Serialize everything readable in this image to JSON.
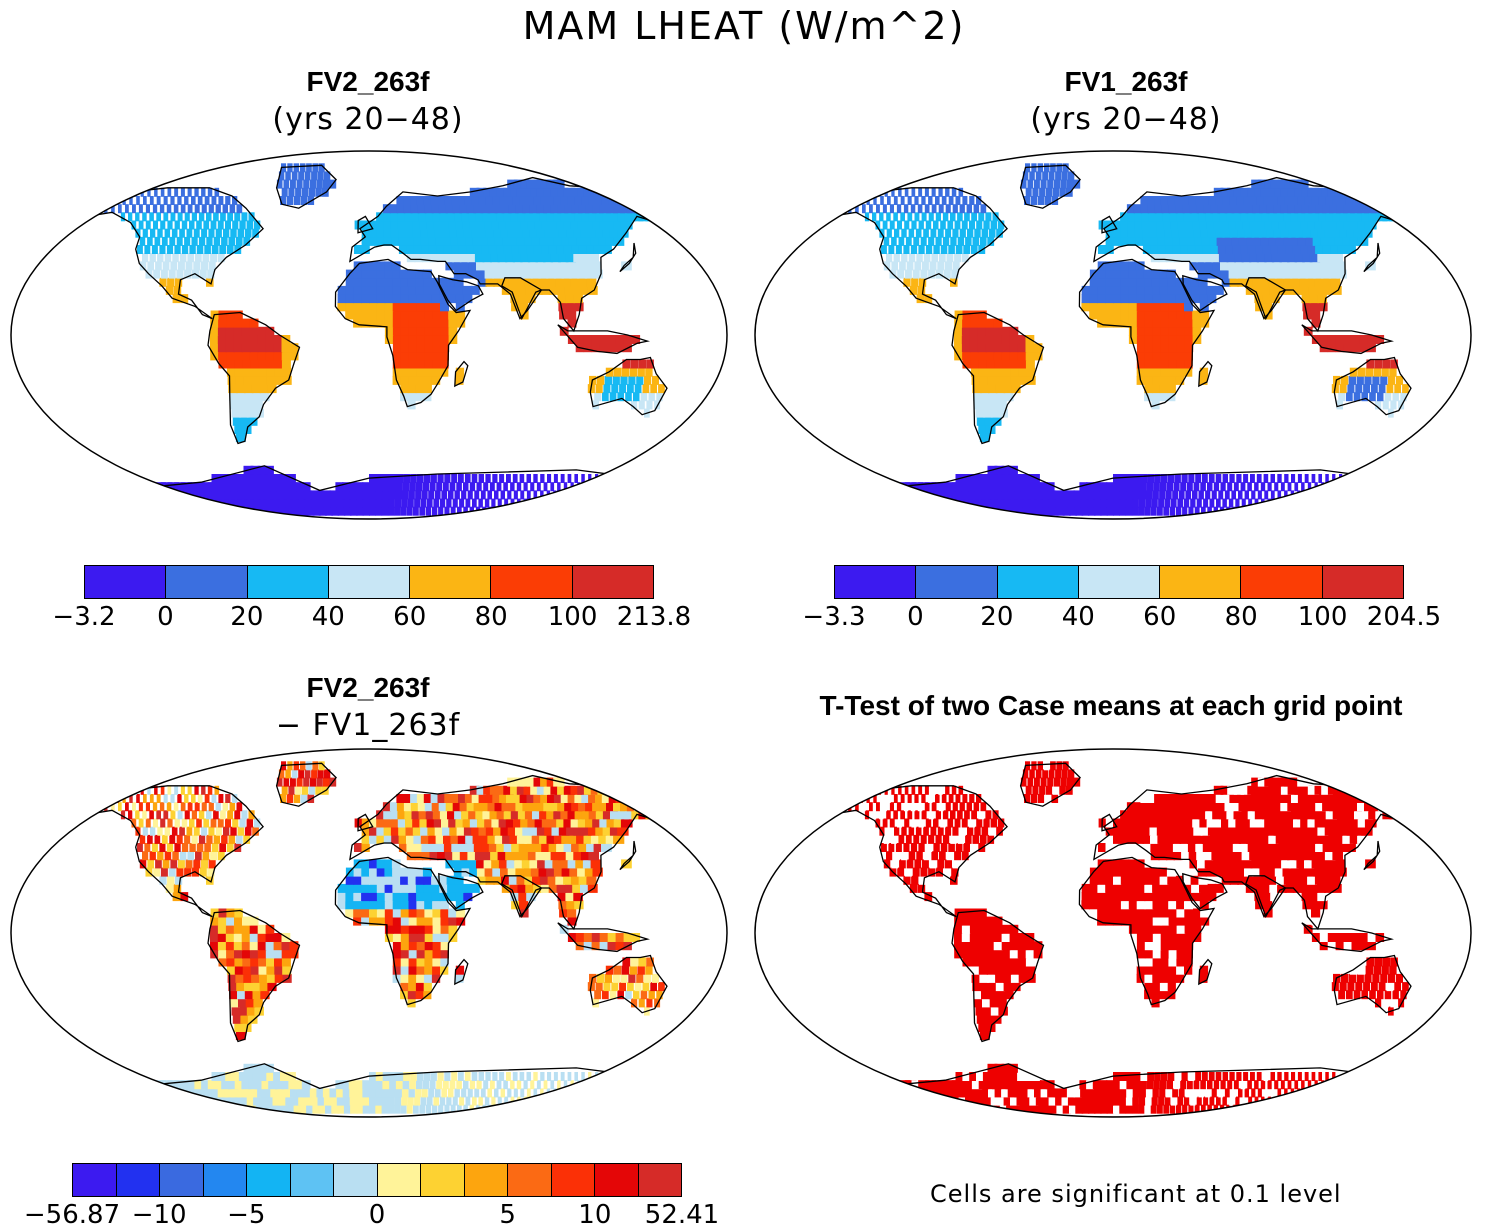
{
  "figure": {
    "title": "MAM LHEAT (W/m^2)"
  },
  "panels": [
    {
      "id": "fv2",
      "title": "FV2_263f",
      "subtitle": "(yrs 20−48)",
      "colorbar": {
        "colors": [
          "#3c1af0",
          "#3b6fe0",
          "#17b9f3",
          "#c8e6f5",
          "#fbb514",
          "#fb3d05",
          "#d62b28"
        ],
        "ticks": [
          "−3.2",
          "0",
          "20",
          "40",
          "60",
          "80",
          "100",
          "213.8"
        ]
      }
    },
    {
      "id": "fv1",
      "title": "FV1_263f",
      "subtitle": "(yrs 20−48)",
      "colorbar": {
        "colors": [
          "#3c1af0",
          "#3b6fe0",
          "#17b9f3",
          "#c8e6f5",
          "#fbb514",
          "#fb3d05",
          "#d62b28"
        ],
        "ticks": [
          "−3.3",
          "0",
          "20",
          "40",
          "60",
          "80",
          "100",
          "204.5"
        ]
      }
    },
    {
      "id": "diff",
      "title": "FV2_263f",
      "subtitle": "− FV1_263f",
      "colorbar": {
        "colors": [
          "#3c1af0",
          "#2231f0",
          "#3a6ae0",
          "#2387f0",
          "#13b4f3",
          "#5ec2f3",
          "#b9dff2",
          "#fff399",
          "#fdd232",
          "#fda50e",
          "#fb6a14",
          "#fb3006",
          "#e40607",
          "#d62b28"
        ],
        "ticks": [
          "−56.87",
          "−10",
          "−5",
          "0",
          "5",
          "10",
          "52.41"
        ]
      }
    },
    {
      "id": "ttest",
      "title": "T-Test of two Case means at each grid point",
      "note": "Cells are significant at 0.1 level",
      "significant_color": "#ee0000"
    }
  ]
}
